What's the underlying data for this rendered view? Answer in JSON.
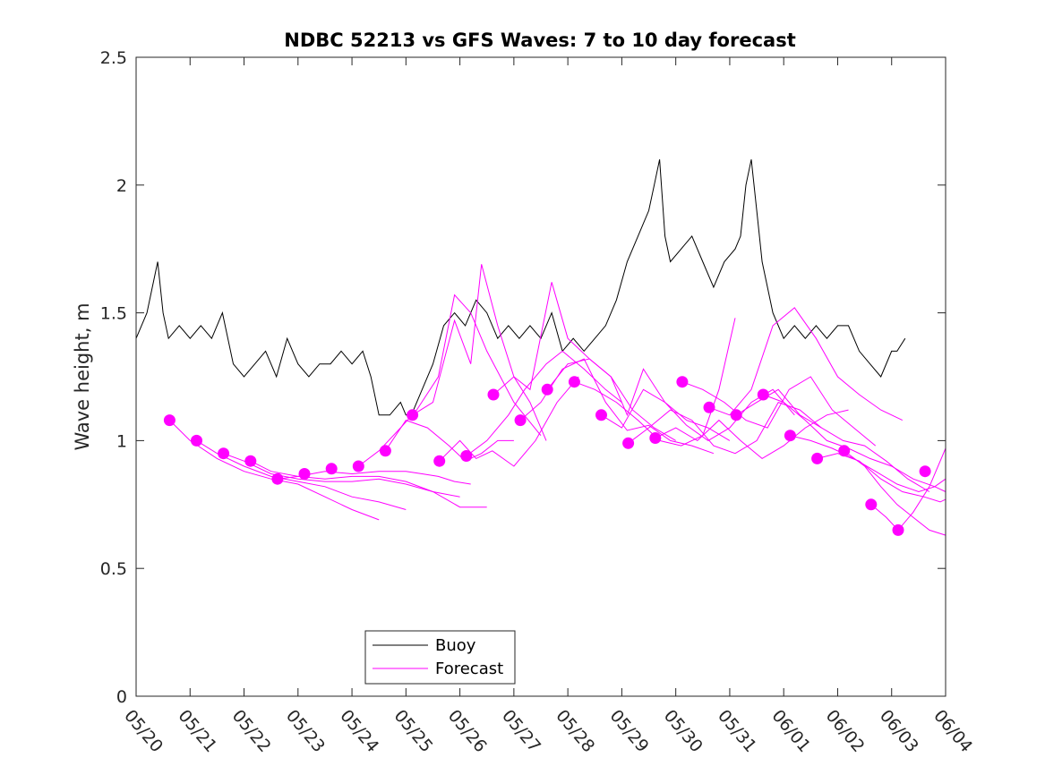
{
  "chart_data": {
    "type": "line",
    "title": "NDBC 52213 vs GFS Waves: 7 to 10 day forecast",
    "xlabel": "",
    "ylabel": "Wave height, m",
    "ylim": [
      0,
      2.5
    ],
    "yticks": [
      0,
      0.5,
      1,
      1.5,
      2,
      2.5
    ],
    "ytick_labels": [
      "0",
      "0.5",
      "1",
      "1.5",
      "2",
      "2.5"
    ],
    "xlim_days": [
      0,
      15
    ],
    "xtick_labels": [
      "05/20",
      "05/21",
      "05/22",
      "05/23",
      "05/24",
      "05/25",
      "05/26",
      "05/27",
      "05/28",
      "05/29",
      "05/30",
      "05/31",
      "06/01",
      "06/02",
      "06/03",
      "06/04"
    ],
    "grid": false,
    "legend": {
      "placement": "bottom-center",
      "entries": [
        "Buoy",
        "Forecast"
      ]
    },
    "colors": {
      "buoy": "#000000",
      "forecast": "#ff00ff",
      "axis": "#262626"
    },
    "series": [
      {
        "name": "Buoy",
        "color": "#000000",
        "x": [
          0.0,
          0.2,
          0.3,
          0.4,
          0.5,
          0.6,
          0.8,
          1.0,
          1.2,
          1.4,
          1.6,
          1.8,
          2.0,
          2.2,
          2.4,
          2.6,
          2.8,
          3.0,
          3.2,
          3.4,
          3.6,
          3.8,
          4.0,
          4.2,
          4.35,
          4.5,
          4.7,
          4.9,
          5.0,
          5.1,
          5.2,
          5.3,
          5.5,
          5.7,
          5.9,
          6.1,
          6.3,
          6.5,
          6.7,
          6.9,
          7.1,
          7.3,
          7.5,
          7.7,
          7.9,
          8.1,
          8.3,
          8.5,
          8.7,
          8.9,
          9.1,
          9.3,
          9.5,
          9.6,
          9.7,
          9.8,
          9.9,
          10.1,
          10.3,
          10.5,
          10.7,
          10.9,
          11.1,
          11.2,
          11.3,
          11.4,
          11.5,
          11.6,
          11.8,
          12.0,
          12.2,
          12.4,
          12.6,
          12.8,
          13.0,
          13.2,
          13.4,
          13.6,
          13.8,
          14.0,
          14.1,
          14.25
        ],
        "y": [
          1.4,
          1.5,
          1.6,
          1.7,
          1.5,
          1.4,
          1.45,
          1.4,
          1.45,
          1.4,
          1.5,
          1.3,
          1.25,
          1.3,
          1.35,
          1.25,
          1.4,
          1.3,
          1.25,
          1.3,
          1.3,
          1.35,
          1.3,
          1.35,
          1.25,
          1.1,
          1.1,
          1.15,
          1.1,
          1.1,
          1.15,
          1.2,
          1.3,
          1.45,
          1.5,
          1.45,
          1.55,
          1.5,
          1.4,
          1.45,
          1.4,
          1.45,
          1.4,
          1.5,
          1.35,
          1.4,
          1.35,
          1.4,
          1.45,
          1.55,
          1.7,
          1.8,
          1.9,
          2.0,
          2.1,
          1.8,
          1.7,
          1.75,
          1.8,
          1.7,
          1.6,
          1.7,
          1.75,
          1.8,
          2.0,
          2.1,
          1.9,
          1.7,
          1.5,
          1.4,
          1.45,
          1.4,
          1.45,
          1.4,
          1.45,
          1.45,
          1.35,
          1.3,
          1.25,
          1.35,
          1.35,
          1.4
        ]
      },
      {
        "name": "Forecast",
        "color": "#ff00ff",
        "markers": {
          "x": [
            0.62,
            1.12,
            1.62,
            2.12,
            2.62,
            3.12,
            3.62,
            4.12,
            4.62,
            5.12,
            5.62,
            6.12,
            6.62,
            7.12,
            7.62,
            8.12,
            8.62,
            9.12,
            9.62,
            10.12,
            10.62,
            11.12,
            11.62,
            12.12,
            12.62,
            13.12,
            13.62,
            14.12,
            14.62
          ],
          "y": [
            1.08,
            1.0,
            0.95,
            0.92,
            0.85,
            0.87,
            0.89,
            0.9,
            0.96,
            1.1,
            0.92,
            0.94,
            1.18,
            1.08,
            1.2,
            1.23,
            1.1,
            0.99,
            1.01,
            1.23,
            1.13,
            1.1,
            1.18,
            1.02,
            0.93,
            0.96,
            0.75,
            0.65,
            0.88
          ]
        },
        "runs": [
          {
            "x": [
              0.62,
              1.0,
              1.5,
              2.0,
              2.5,
              3.0,
              3.5,
              4.0,
              4.5
            ],
            "y": [
              1.08,
              1.0,
              0.93,
              0.88,
              0.85,
              0.83,
              0.78,
              0.73,
              0.69
            ]
          },
          {
            "x": [
              1.12,
              1.5,
              2.0,
              2.5,
              3.0,
              3.5,
              4.0,
              4.5,
              5.0
            ],
            "y": [
              1.0,
              0.95,
              0.9,
              0.86,
              0.84,
              0.82,
              0.78,
              0.76,
              0.73
            ]
          },
          {
            "x": [
              1.62,
              2.0,
              2.5,
              3.0,
              3.5,
              4.0,
              4.5,
              5.0,
              5.5,
              6.0
            ],
            "y": [
              0.95,
              0.92,
              0.87,
              0.85,
              0.84,
              0.84,
              0.85,
              0.83,
              0.8,
              0.78
            ]
          },
          {
            "x": [
              2.12,
              2.5,
              3.0,
              3.5,
              4.0,
              4.5,
              5.0,
              5.5,
              6.0,
              6.5
            ],
            "y": [
              0.92,
              0.88,
              0.86,
              0.85,
              0.86,
              0.86,
              0.84,
              0.8,
              0.74,
              0.74
            ]
          },
          {
            "x": [
              2.62,
              3.0,
              3.5,
              4.0,
              4.5,
              5.0,
              5.3,
              5.6,
              5.9,
              6.2
            ],
            "y": [
              0.85,
              0.86,
              0.88,
              0.87,
              0.88,
              0.88,
              0.87,
              0.86,
              0.84,
              0.83
            ]
          },
          {
            "x": [
              4.12,
              4.5,
              4.9,
              5.2,
              5.6,
              5.9,
              6.2,
              6.5,
              7.0,
              7.5
            ],
            "y": [
              0.9,
              0.96,
              1.05,
              1.12,
              1.25,
              1.57,
              1.5,
              1.35,
              1.15,
              1.02
            ]
          },
          {
            "x": [
              4.62,
              5.0,
              5.4,
              5.8,
              6.1,
              6.4,
              6.7,
              7.0
            ],
            "y": [
              0.96,
              1.08,
              1.05,
              0.98,
              0.92,
              0.95,
              1.0,
              1.0
            ]
          },
          {
            "x": [
              5.12,
              5.5,
              5.9,
              6.2,
              6.4,
              6.7,
              7.0,
              7.3,
              7.6
            ],
            "y": [
              1.1,
              1.15,
              1.47,
              1.3,
              1.69,
              1.45,
              1.25,
              1.15,
              1.0
            ]
          },
          {
            "x": [
              5.62,
              6.0,
              6.3,
              6.6,
              7.0,
              7.4,
              7.8,
              8.2
            ],
            "y": [
              0.92,
              1.0,
              0.93,
              0.96,
              0.9,
              1.0,
              1.15,
              1.25
            ]
          },
          {
            "x": [
              6.12,
              6.5,
              6.9,
              7.2,
              7.6,
              7.9,
              8.3,
              8.7,
              9.0
            ],
            "y": [
              0.94,
              1.0,
              1.1,
              1.2,
              1.3,
              1.35,
              1.28,
              1.2,
              1.15
            ]
          },
          {
            "x": [
              6.62,
              7.0,
              7.3,
              7.7,
              8.0,
              8.4,
              8.8,
              9.2,
              9.6,
              10.0
            ],
            "y": [
              1.18,
              1.25,
              1.2,
              1.62,
              1.4,
              1.32,
              1.25,
              1.12,
              1.05,
              1.0
            ]
          },
          {
            "x": [
              7.12,
              7.5,
              7.9,
              8.3,
              8.7,
              9.1,
              9.5,
              9.9,
              10.3,
              10.7
            ],
            "y": [
              1.08,
              1.15,
              1.28,
              1.32,
              1.15,
              1.04,
              1.06,
              1.0,
              0.98,
              0.95
            ]
          },
          {
            "x": [
              7.62,
              8.0,
              8.4,
              8.8,
              9.1,
              9.4,
              9.8,
              10.2,
              10.6,
              11.0
            ],
            "y": [
              1.2,
              1.3,
              1.32,
              1.25,
              1.1,
              1.28,
              1.15,
              1.08,
              1.05,
              1.0
            ]
          },
          {
            "x": [
              8.12,
              8.5,
              8.9,
              9.3,
              9.7,
              10.1,
              10.5,
              10.8,
              11.1
            ],
            "y": [
              1.23,
              1.2,
              1.15,
              1.08,
              1.0,
              0.98,
              1.02,
              1.2,
              1.48
            ]
          },
          {
            "x": [
              8.62,
              9.0,
              9.4,
              9.8,
              10.2,
              10.6,
              11.0,
              11.4,
              11.8,
              12.2
            ],
            "y": [
              1.1,
              1.05,
              1.2,
              1.15,
              1.06,
              1.0,
              1.05,
              1.15,
              1.2,
              1.1
            ]
          },
          {
            "x": [
              9.12,
              9.5,
              9.9,
              10.3,
              10.7,
              11.1,
              11.5,
              11.9,
              12.3,
              12.7
            ],
            "y": [
              0.99,
              1.05,
              1.12,
              1.08,
              0.98,
              0.95,
              1.0,
              1.15,
              1.12,
              1.05
            ]
          },
          {
            "x": [
              9.62,
              10.0,
              10.4,
              10.8,
              11.2,
              11.6,
              12.0,
              12.4,
              12.8,
              13.2
            ],
            "y": [
              1.01,
              1.05,
              1.0,
              1.08,
              1.0,
              0.93,
              0.98,
              1.05,
              1.1,
              1.12
            ]
          },
          {
            "x": [
              10.12,
              10.5,
              10.9,
              11.3,
              11.7,
              12.1,
              12.5,
              12.9,
              13.3,
              13.7
            ],
            "y": [
              1.23,
              1.2,
              1.15,
              1.08,
              1.05,
              1.2,
              1.25,
              1.12,
              1.05,
              0.98
            ]
          },
          {
            "x": [
              10.62,
              11.0,
              11.4,
              11.8,
              12.2,
              12.6,
              13.0,
              13.4,
              13.8,
              14.2
            ],
            "y": [
              1.13,
              1.1,
              1.2,
              1.45,
              1.52,
              1.4,
              1.25,
              1.18,
              1.12,
              1.08
            ]
          },
          {
            "x": [
              11.12,
              11.5,
              11.9,
              12.3,
              12.7,
              13.1,
              13.5,
              13.9,
              14.3,
              14.7
            ],
            "y": [
              1.1,
              1.15,
              1.2,
              1.1,
              1.05,
              1.0,
              0.98,
              0.92,
              0.85,
              0.8
            ]
          },
          {
            "x": [
              11.62,
              12.0,
              12.4,
              12.8,
              13.2,
              13.6,
              14.0,
              14.4,
              14.8,
              15.0
            ],
            "y": [
              1.18,
              1.15,
              1.08,
              1.0,
              0.97,
              0.93,
              0.9,
              0.85,
              0.82,
              0.8
            ]
          },
          {
            "x": [
              12.12,
              12.5,
              12.9,
              13.3,
              13.7,
              14.1,
              14.5,
              14.8,
              15.0
            ],
            "y": [
              1.02,
              1.0,
              0.97,
              0.93,
              0.88,
              0.83,
              0.8,
              0.82,
              0.85
            ]
          },
          {
            "x": [
              12.62,
              13.0,
              13.4,
              13.8,
              14.2,
              14.6,
              14.9,
              15.0
            ],
            "y": [
              0.93,
              0.95,
              0.92,
              0.85,
              0.8,
              0.78,
              0.76,
              0.77
            ]
          },
          {
            "x": [
              13.12,
              13.5,
              13.8,
              14.1,
              14.4,
              14.7,
              15.0
            ],
            "y": [
              0.96,
              0.9,
              0.82,
              0.75,
              0.7,
              0.65,
              0.63
            ]
          },
          {
            "x": [
              13.62,
              13.9,
              14.12,
              14.4,
              14.7,
              15.0
            ],
            "y": [
              0.75,
              0.7,
              0.65,
              0.72,
              0.82,
              0.97
            ]
          }
        ]
      }
    ]
  }
}
